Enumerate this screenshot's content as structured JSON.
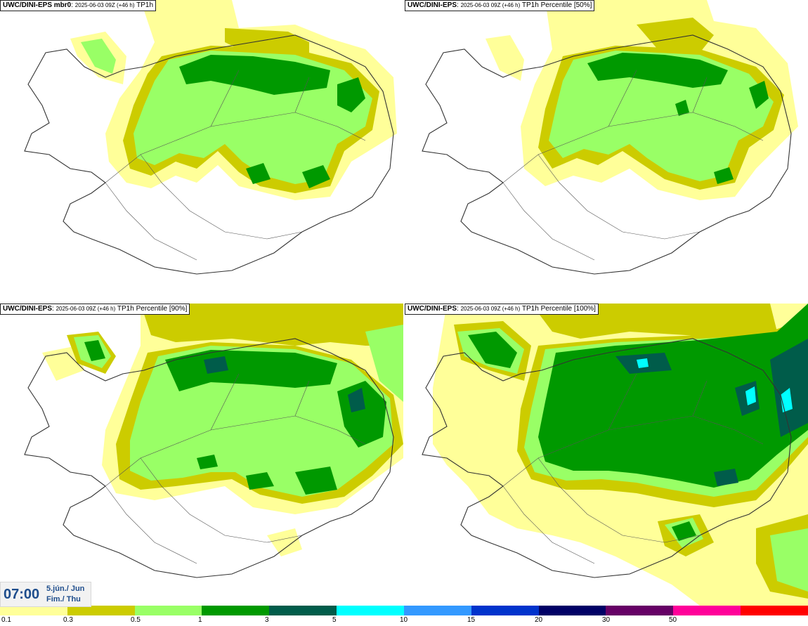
{
  "panels": [
    {
      "model": "UWC/DINI-EPS mbr0",
      "run": "2025-06-03 09Z (+46 h)",
      "field": "TP1h"
    },
    {
      "model": "UWC/DINI-EPS",
      "run": "2025-06-03 09Z (+46 h)",
      "field": "TP1h Percentile [50%]"
    },
    {
      "model": "UWC/DINI-EPS",
      "run": "2025-06-03 09Z (+46 h)",
      "field": "TP1h Percentile [90%]"
    },
    {
      "model": "UWC/DINI-EPS",
      "run": "2025-06-03 09Z (+46 h)",
      "field": "TP1h Percentile [100%]"
    }
  ],
  "clock": {
    "time": "07:00",
    "date_line1": "5.jún./ Jun",
    "date_line2": "Fim./ Thu"
  },
  "legend": {
    "colors": [
      "#ffff99",
      "#cccc00",
      "#99ff66",
      "#009900",
      "#005c4a",
      "#00ffff",
      "#3399ff",
      "#0033cc",
      "#000066",
      "#660066",
      "#ff0099",
      "#ff0000"
    ],
    "labels": [
      "0.1",
      "0.3",
      "0.5",
      "1",
      "3",
      "5",
      "10",
      "15",
      "20",
      "30",
      "50"
    ]
  }
}
